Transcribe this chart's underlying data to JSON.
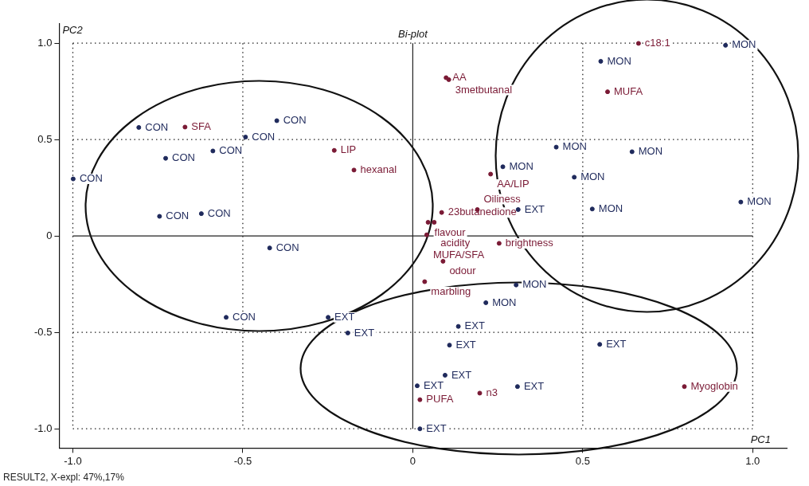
{
  "chart_data": {
    "type": "scatter",
    "title": "Bi-plot",
    "xlabel": "PC1",
    "ylabel": "PC2",
    "xlim": [
      -1.04,
      1.1
    ],
    "ylim": [
      -1.1,
      1.1
    ],
    "xticks": [
      {
        "value": -1,
        "label": "-1.0"
      },
      -0.5,
      0,
      0.5,
      {
        "value": 1,
        "label": "1.0"
      }
    ],
    "yticks": [
      {
        "value": -1,
        "label": "-1.0"
      },
      -0.5,
      0,
      0.5,
      {
        "value": 1,
        "label": "1.0"
      }
    ],
    "grid": true,
    "marker": "circle",
    "series": [
      {
        "color": "#1f2a5c",
        "x": [
          -0.806,
          -0.4,
          -0.492,
          -0.588,
          -0.727,
          -0.999,
          -0.745,
          -0.622,
          -0.421,
          -0.549,
          0.92,
          0.553,
          0.422,
          0.645,
          0.265,
          0.475,
          0.528,
          0.965,
          0.304,
          0.215,
          -0.249,
          -0.191,
          0.134,
          0.108,
          0.55,
          0.095,
          0.013,
          0.308,
          0.021,
          0.31
        ],
        "values": [
          0.563,
          0.598,
          0.513,
          0.441,
          0.403,
          0.296,
          0.102,
          0.116,
          -0.062,
          -0.422,
          0.989,
          0.906,
          0.461,
          0.437,
          0.359,
          0.305,
          0.14,
          0.176,
          -0.254,
          -0.346,
          -0.422,
          -0.503,
          -0.469,
          -0.566,
          -0.562,
          -0.722,
          -0.777,
          -0.781,
          -1.0,
          0.137
        ]
      },
      {
        "color": "#7a1a35",
        "x": [
          -0.67,
          -0.231,
          -0.173,
          0.664,
          0.098,
          0.106,
          0.573,
          0.229,
          0.085,
          0.045,
          0.063,
          0.19,
          0.041,
          0.254,
          0.089,
          0.035,
          0.021,
          0.197,
          0.799
        ],
        "values": [
          0.565,
          0.444,
          0.342,
          0.999,
          0.821,
          0.811,
          0.748,
          0.321,
          0.122,
          0.071,
          0.071,
          0.137,
          0.006,
          -0.038,
          -0.131,
          -0.237,
          -0.849,
          -0.815,
          -0.781
        ]
      }
    ],
    "annotations": [
      "RESULT2, X-expl: 47%,17%",
      {
        "text": "CON",
        "x": -0.806,
        "y": 0.563
      },
      {
        "text": "CON",
        "x": -0.4,
        "y": 0.598
      },
      {
        "text": "CON",
        "x": -0.492,
        "y": 0.513
      },
      {
        "text": "CON",
        "x": -0.588,
        "y": 0.441
      },
      {
        "text": "CON",
        "x": -0.727,
        "y": 0.403
      },
      {
        "text": "CON",
        "x": -0.999,
        "y": 0.296
      },
      {
        "text": "CON",
        "x": -0.745,
        "y": 0.102
      },
      {
        "text": "CON",
        "x": -0.622,
        "y": 0.116
      },
      {
        "text": "CON",
        "x": -0.421,
        "y": -0.062
      },
      {
        "text": "CON",
        "x": -0.549,
        "y": -0.422
      },
      {
        "text": "MON",
        "x": 0.92,
        "y": 0.989
      },
      {
        "text": "MON",
        "x": 0.553,
        "y": 0.906
      },
      {
        "text": "MON",
        "x": 0.422,
        "y": 0.461
      },
      {
        "text": "MON",
        "x": 0.645,
        "y": 0.437
      },
      {
        "text": "MON",
        "x": 0.265,
        "y": 0.359
      },
      {
        "text": "MON",
        "x": 0.475,
        "y": 0.305
      },
      {
        "text": "MON",
        "x": 0.528,
        "y": 0.14
      },
      {
        "text": "MON",
        "x": 0.965,
        "y": 0.176
      },
      {
        "text": "MON",
        "x": 0.304,
        "y": -0.254
      },
      {
        "text": "MON",
        "x": 0.215,
        "y": -0.346
      },
      {
        "text": "EXT",
        "x": -0.249,
        "y": -0.422
      },
      {
        "text": "EXT",
        "x": -0.191,
        "y": -0.503
      },
      {
        "text": "EXT",
        "x": 0.134,
        "y": -0.469
      },
      {
        "text": "EXT",
        "x": 0.108,
        "y": -0.566
      },
      {
        "text": "EXT",
        "x": 0.55,
        "y": -0.562
      },
      {
        "text": "EXT",
        "x": 0.095,
        "y": -0.722
      },
      {
        "text": "EXT",
        "x": 0.013,
        "y": -0.777
      },
      {
        "text": "EXT",
        "x": 0.308,
        "y": -0.781
      },
      {
        "text": "EXT",
        "x": 0.021,
        "y": -1.0
      },
      {
        "text": "EXT",
        "x": 0.31,
        "y": 0.137
      },
      {
        "text": "SFA",
        "x": -0.67,
        "y": 0.565
      },
      {
        "text": "LIP",
        "x": -0.231,
        "y": 0.444
      },
      {
        "text": "hexanal",
        "x": -0.173,
        "y": 0.342
      },
      {
        "text": "c18:1",
        "x": 0.664,
        "y": 0.999
      },
      {
        "text": "AA",
        "x": 0.098,
        "y": 0.821
      },
      {
        "text": "3metbutanal",
        "x": 0.106,
        "y": 0.811
      },
      {
        "text": "MUFA",
        "x": 0.573,
        "y": 0.748
      },
      {
        "text": "AA/LIP",
        "x": 0.229,
        "y": 0.321
      },
      {
        "text": "23butanedione",
        "x": 0.085,
        "y": 0.122
      },
      {
        "text": "flavour",
        "x": 0.045,
        "y": 0.071
      },
      {
        "text": "acidity",
        "x": 0.063,
        "y": 0.071
      },
      {
        "text": "Oiliness",
        "x": 0.19,
        "y": 0.137
      },
      {
        "text": "MUFA/SFA",
        "x": 0.041,
        "y": 0.006
      },
      {
        "text": "brightness",
        "x": 0.254,
        "y": -0.038
      },
      {
        "text": "odour",
        "x": 0.089,
        "y": -0.131
      },
      {
        "text": "marbling",
        "x": 0.035,
        "y": -0.237
      },
      {
        "text": "PUFA",
        "x": 0.021,
        "y": -0.849
      },
      {
        "text": "n3",
        "x": 0.197,
        "y": -0.815
      },
      {
        "text": "Myoglobin",
        "x": 0.799,
        "y": -0.781
      }
    ]
  }
}
